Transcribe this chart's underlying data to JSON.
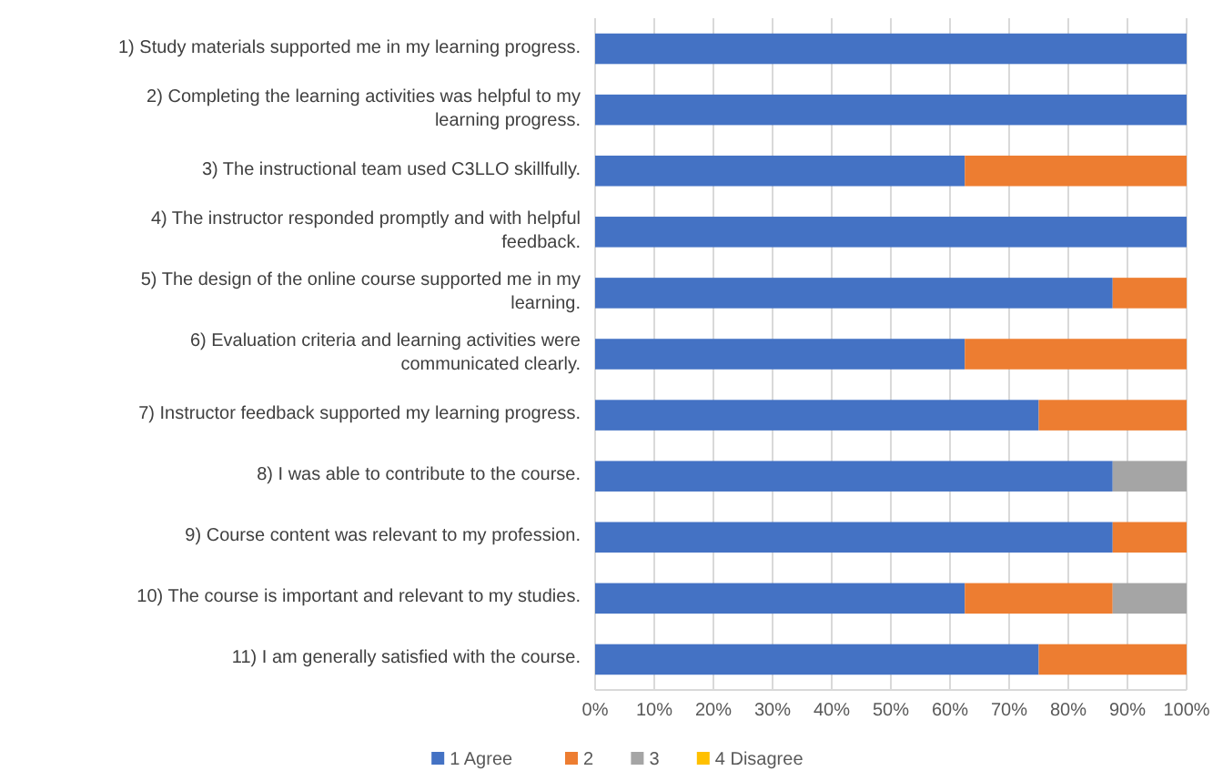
{
  "chart_data": {
    "type": "bar",
    "orientation": "horizontal",
    "stacked": true,
    "categories": [
      "1) Study materials supported me in my learning progress.",
      "2) Completing the learning activities was helpful to my learning progress.",
      "3) The instructional team used C3LLO skillfully.",
      "4) The instructor responded promptly and with helpful feedback.",
      "5) The design of the online course supported me in my learning.",
      "6) Evaluation criteria and learning activities were communicated clearly.",
      "7) Instructor feedback supported my learning progress.",
      "8) I was able to contribute to the course.",
      "9) Course content was relevant to my profession.",
      "10) The course is important and relevant to my studies.",
      "11) I am generally satisfied with the course."
    ],
    "series": [
      {
        "name": "1 Agree",
        "color": "#4472c4",
        "values": [
          100,
          100,
          62.5,
          100,
          87.5,
          62.5,
          75,
          87.5,
          87.5,
          62.5,
          75
        ]
      },
      {
        "name": "2",
        "color": "#ed7d31",
        "values": [
          0,
          0,
          37.5,
          0,
          12.5,
          37.5,
          25,
          0,
          12.5,
          25,
          25
        ]
      },
      {
        "name": "3",
        "color": "#a5a5a5",
        "values": [
          0,
          0,
          0,
          0,
          0,
          0,
          0,
          12.5,
          0,
          12.5,
          0
        ]
      },
      {
        "name": "4 Disagree",
        "color": "#ffc000",
        "values": [
          0,
          0,
          0,
          0,
          0,
          0,
          0,
          0,
          0,
          0,
          0
        ]
      }
    ],
    "xlim": [
      0,
      100
    ],
    "xticks": [
      {
        "value": 0,
        "label": "0%"
      },
      {
        "value": 10,
        "label": "10%"
      },
      {
        "value": 20,
        "label": "20%"
      },
      {
        "value": 30,
        "label": "30%"
      },
      {
        "value": 40,
        "label": "40%"
      },
      {
        "value": 50,
        "label": "50%"
      },
      {
        "value": 60,
        "label": "60%"
      },
      {
        "value": 70,
        "label": "70%"
      },
      {
        "value": 80,
        "label": "80%"
      },
      {
        "value": 90,
        "label": "90%"
      },
      {
        "value": 100,
        "label": "100%"
      }
    ],
    "grid": "x",
    "legend": "bottom"
  }
}
